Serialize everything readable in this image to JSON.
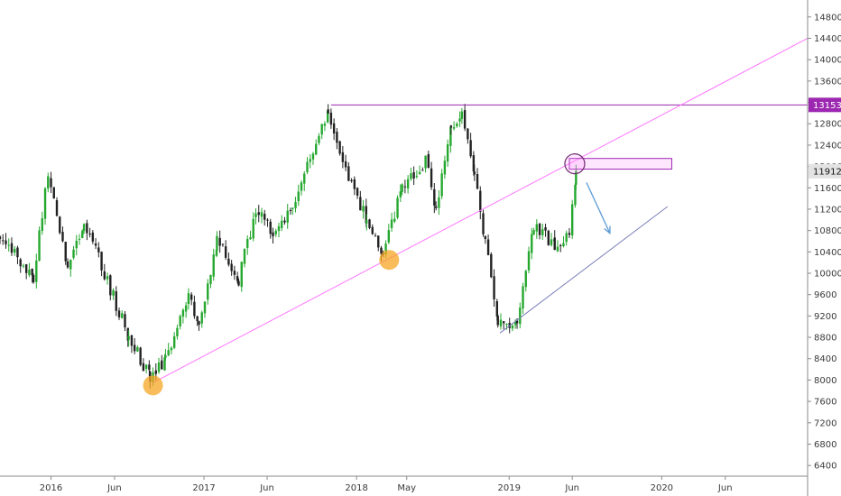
{
  "chart_data": {
    "type": "candlestick",
    "y_axis": {
      "ticks": [
        6400,
        6800,
        7200,
        7600,
        8000,
        8400,
        8800,
        9200,
        9600,
        10000,
        10400,
        10800,
        11200,
        11600,
        12000,
        12400,
        12800,
        13200,
        13600,
        14000,
        14400,
        14800
      ],
      "ylim": [
        6200,
        15050
      ],
      "position": "right"
    },
    "x_axis": {
      "labels": [
        "2016",
        "Jun",
        "2017",
        "Jun",
        "2018",
        "May",
        "2019",
        "Jun",
        "2020",
        "Jun"
      ],
      "label_dates": [
        "2016-01-01",
        "2016-06-01",
        "2017-01-01",
        "2017-06-01",
        "2018-01-01",
        "2018-05-01",
        "2019-01-01",
        "2019-06-01",
        "2020-01-01",
        "2020-06-01"
      ],
      "xlim": [
        "2015-09-01",
        "2020-12-15"
      ]
    },
    "grid": false,
    "colors": {
      "up": "#26a82f",
      "down": "#222222",
      "trend": "#ff77ff",
      "level": "#9c27b0",
      "arrow": "#5b9bd5",
      "support": "#7b7fb8",
      "marker": "#f5a623"
    },
    "anchors": [
      {
        "date": "2015-09-01",
        "price": 10700
      },
      {
        "date": "2015-11-20",
        "price": 9900
      },
      {
        "date": "2015-12-25",
        "price": 11900
      },
      {
        "date": "2016-02-10",
        "price": 10100
      },
      {
        "date": "2016-03-20",
        "price": 11000
      },
      {
        "date": "2016-07-05",
        "price": 8800
      },
      {
        "date": "2016-08-25",
        "price": 8050
      },
      {
        "date": "2016-10-01",
        "price": 8400
      },
      {
        "date": "2016-11-25",
        "price": 9600
      },
      {
        "date": "2016-12-20",
        "price": 9000
      },
      {
        "date": "2017-02-01",
        "price": 10600
      },
      {
        "date": "2017-03-25",
        "price": 9900
      },
      {
        "date": "2017-05-05",
        "price": 11200
      },
      {
        "date": "2017-06-15",
        "price": 10800
      },
      {
        "date": "2017-08-01",
        "price": 11200
      },
      {
        "date": "2017-10-25",
        "price": 13100
      },
      {
        "date": "2017-12-20",
        "price": 11600
      },
      {
        "date": "2018-01-25",
        "price": 11000
      },
      {
        "date": "2018-03-05",
        "price": 10400
      },
      {
        "date": "2018-04-20",
        "price": 11600
      },
      {
        "date": "2018-06-15",
        "price": 12100
      },
      {
        "date": "2018-07-10",
        "price": 11200
      },
      {
        "date": "2018-08-15",
        "price": 12700
      },
      {
        "date": "2018-09-10",
        "price": 13100
      },
      {
        "date": "2018-10-10",
        "price": 11800
      },
      {
        "date": "2018-11-05",
        "price": 10600
      },
      {
        "date": "2018-12-05",
        "price": 9000
      },
      {
        "date": "2019-01-20",
        "price": 9100
      },
      {
        "date": "2019-03-01",
        "price": 10900
      },
      {
        "date": "2019-04-20",
        "price": 10500
      },
      {
        "date": "2019-05-25",
        "price": 10700
      },
      {
        "date": "2019-06-10",
        "price": 11912
      }
    ],
    "trendline": {
      "points": [
        {
          "date": "2016-09-01",
          "price": 7950
        },
        {
          "date": "2020-12-15",
          "price": 14400
        }
      ]
    },
    "support_line": {
      "points": [
        {
          "date": "2018-12-10",
          "price": 8880
        },
        {
          "date": "2020-01-15",
          "price": 11250
        }
      ]
    },
    "resistance_level": {
      "price": 13153,
      "from_date": "2017-11-01",
      "label": "13153"
    },
    "last_price": {
      "price": 11912,
      "label": "11912"
    },
    "zone": {
      "from_date": "2019-05-25",
      "to_date": "2020-01-25",
      "low": 11950,
      "high": 12150
    },
    "markers": [
      {
        "date": "2016-09-01",
        "price": 7900,
        "style": "orange"
      },
      {
        "date": "2018-03-20",
        "price": 10250,
        "style": "orange"
      },
      {
        "date": "2019-06-07",
        "price": 12050,
        "style": "ring"
      }
    ],
    "arrow": {
      "from": {
        "date": "2019-07-05",
        "price": 11700
      },
      "to": {
        "date": "2019-08-30",
        "price": 10750
      }
    }
  }
}
